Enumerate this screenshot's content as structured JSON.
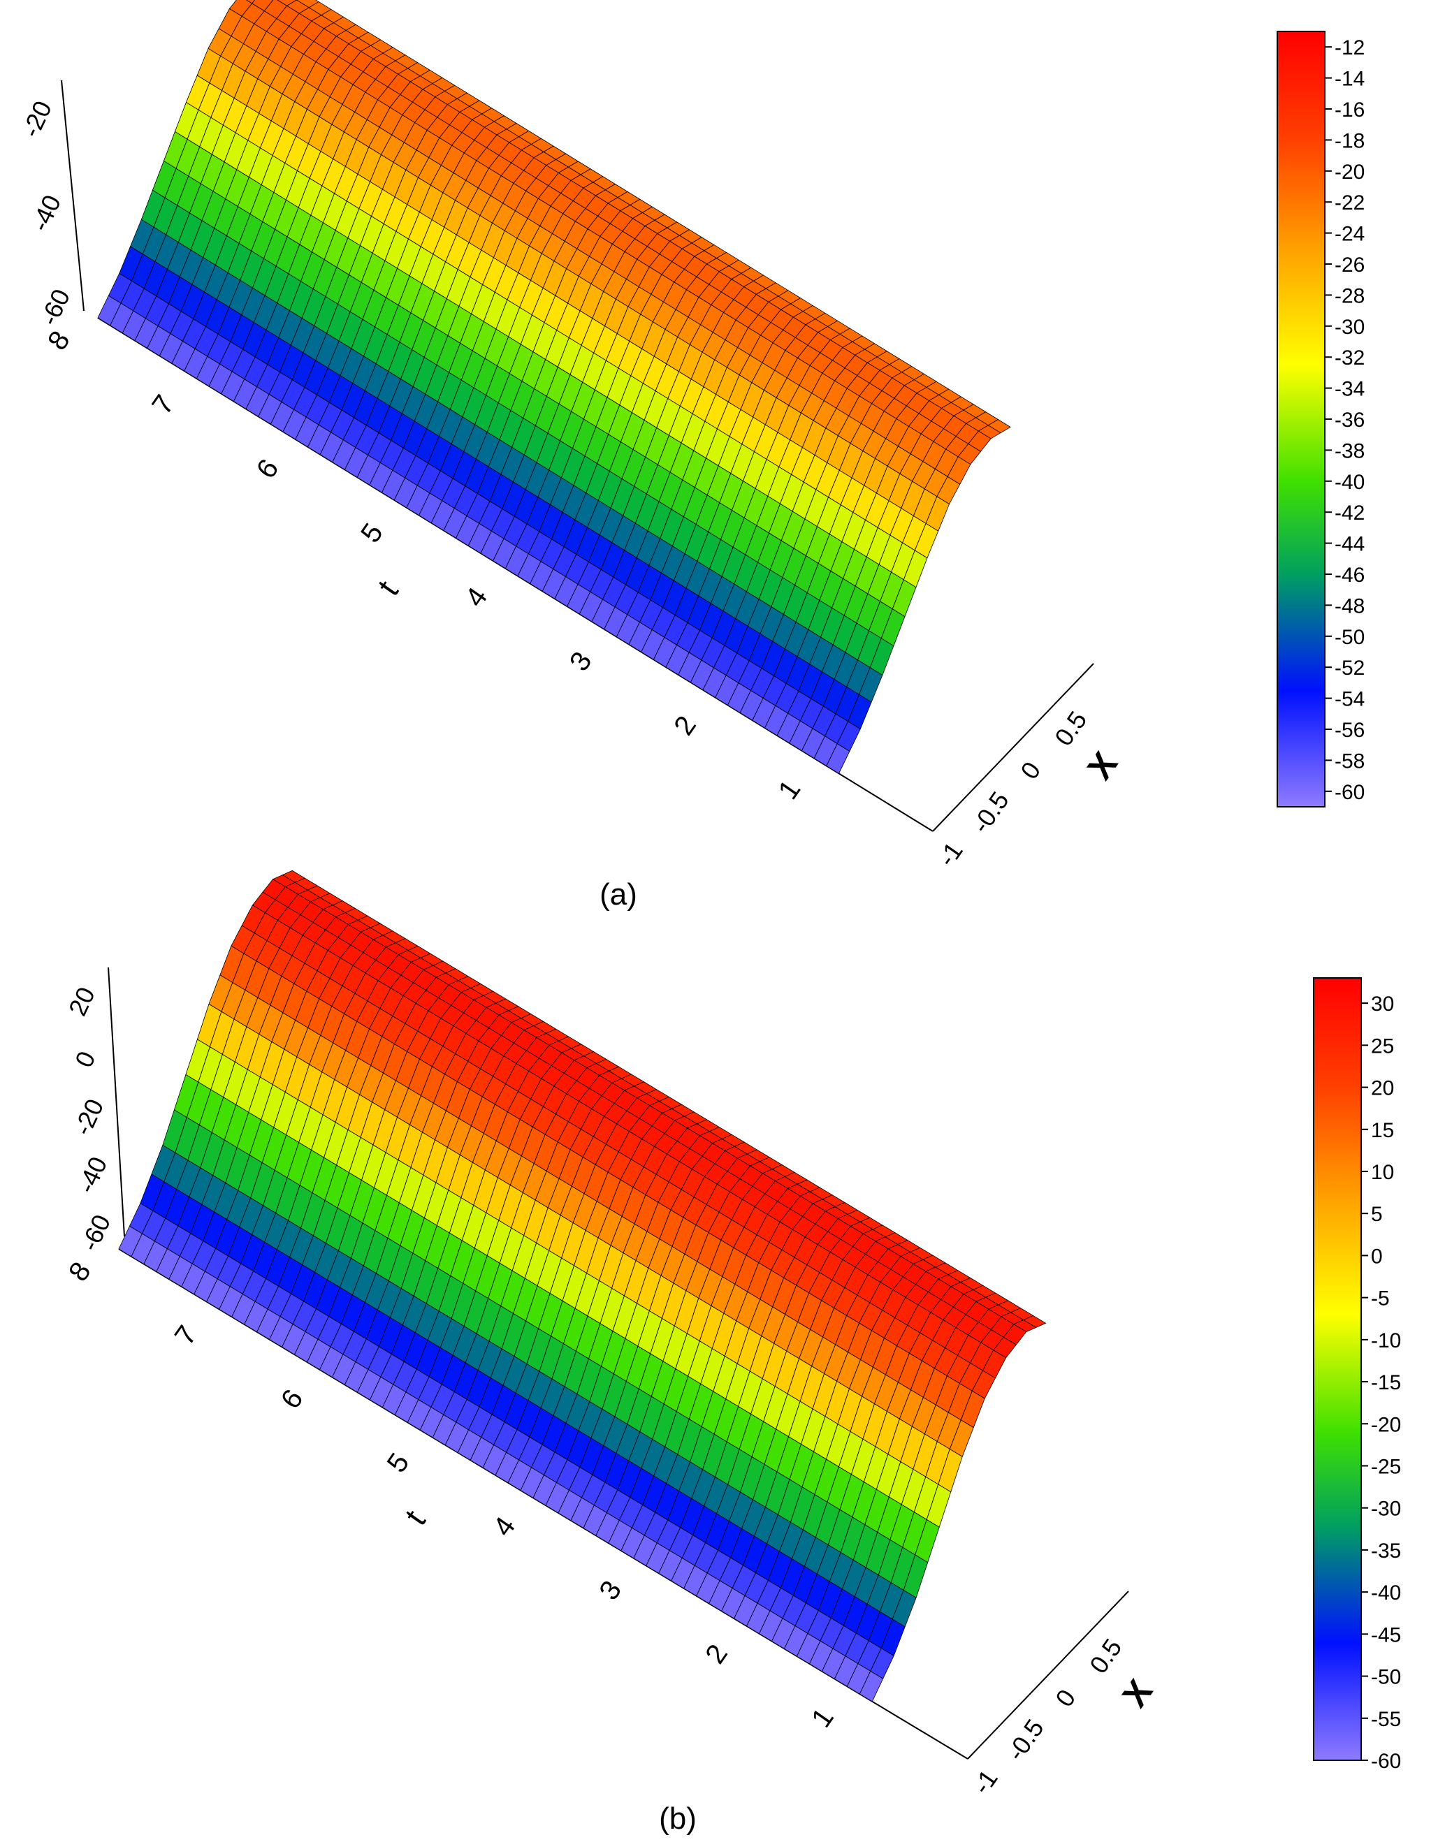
{
  "chart_data": [
    {
      "panel": "(a)",
      "type": "surface3d",
      "caption": "(a)",
      "xlabel": "X",
      "ylabel": "t",
      "zlabel": "",
      "x_ticks": [
        "-1",
        "-0.5",
        "0",
        "0.5"
      ],
      "t_ticks": [
        "1",
        "2",
        "3",
        "4",
        "5",
        "6",
        "7",
        "8"
      ],
      "z_ticks": [
        "-20",
        "-40",
        "-60"
      ],
      "xlim": [
        -1,
        1
      ],
      "tlim": [
        0,
        8
      ],
      "zlim": [
        -60,
        -11
      ],
      "surface": {
        "description_of_shape": "Cross-section in X is roughly constant along t (8 down to ~2) with a minimum near X=-1 edge and maximum near X=0.5; near t=0..1 the surface turns up strongly at X=1.",
        "x": [
          -1,
          -0.75,
          -0.5,
          -0.25,
          0,
          0.25,
          0.5,
          0.75,
          1
        ],
        "profile_z": [
          -60,
          -55,
          -48,
          -40,
          -32,
          -25,
          -21,
          -20,
          -22
        ]
      },
      "colorbar": {
        "ticks": [
          "-12",
          "-14",
          "-16",
          "-18",
          "-20",
          "-22",
          "-24",
          "-26",
          "-28",
          "-30",
          "-32",
          "-34",
          "-36",
          "-38",
          "-40",
          "-42",
          "-44",
          "-46",
          "-48",
          "-50",
          "-52",
          "-54",
          "-56",
          "-58",
          "-60"
        ],
        "min": -61,
        "max": -11
      },
      "colormap": [
        "#8f7bff",
        "#0010ff",
        "#00b040",
        "#40e000",
        "#ffff00",
        "#ffa000",
        "#ff4000",
        "#ff0000"
      ]
    },
    {
      "panel": "(b)",
      "type": "surface3d",
      "caption": "(b)",
      "xlabel": "X",
      "ylabel": "t",
      "zlabel": "",
      "x_ticks": [
        "-1",
        "-0.5",
        "0",
        "0.5"
      ],
      "t_ticks": [
        "1",
        "2",
        "3",
        "4",
        "5",
        "6",
        "7",
        "8"
      ],
      "z_ticks": [
        "20",
        "0",
        "-20",
        "-40",
        "-60"
      ],
      "xlim": [
        -1,
        1
      ],
      "tlim": [
        0,
        8
      ],
      "zlim": [
        -60,
        33
      ],
      "surface": {
        "description_of_shape": "Cross-section in X roughly constant along t, rising from ~-60 at X=-1 to ~30 near X=0.5, dropping near X=1 at small t.",
        "x": [
          -1,
          -0.75,
          -0.5,
          -0.25,
          0,
          0.25,
          0.5,
          0.75,
          1
        ],
        "profile_z": [
          -60,
          -50,
          -35,
          -15,
          5,
          20,
          28,
          30,
          25
        ]
      },
      "colorbar": {
        "ticks": [
          "30",
          "25",
          "20",
          "15",
          "10",
          "5",
          "0",
          "-5",
          "-10",
          "-15",
          "-20",
          "-25",
          "-30",
          "-35",
          "-40",
          "-45",
          "-50",
          "-55",
          "-60"
        ],
        "min": -60,
        "max": 33
      },
      "colormap": [
        "#8f7bff",
        "#0010ff",
        "#00b040",
        "#40e000",
        "#ffff00",
        "#ffa000",
        "#ff4000",
        "#ff0000"
      ]
    }
  ]
}
